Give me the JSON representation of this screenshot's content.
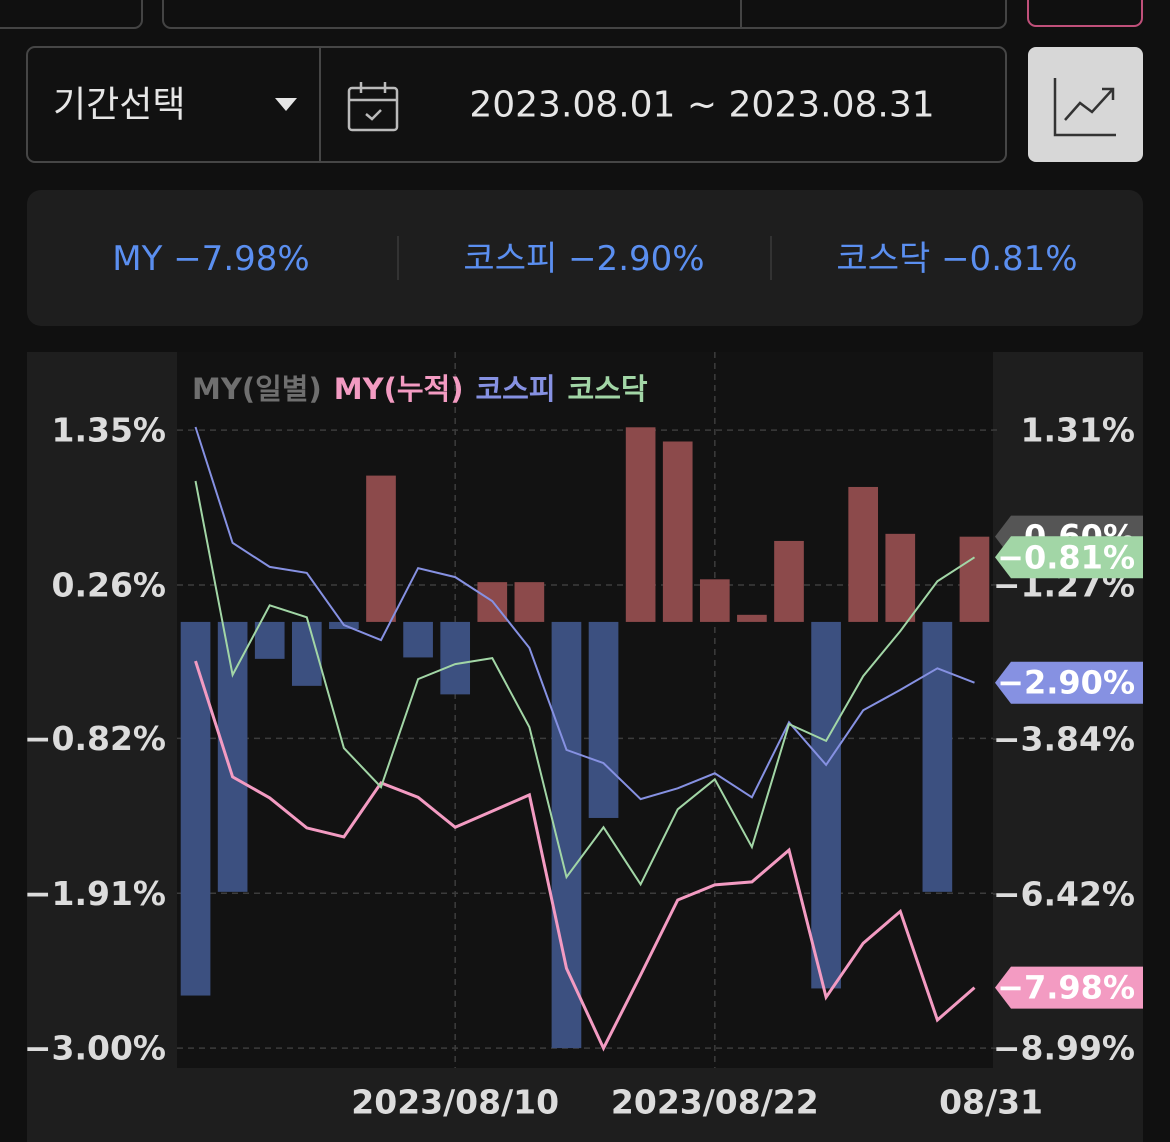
{
  "filter": {
    "period_select": "기간선택",
    "date_range": "2023.08.01 ~ 2023.08.31"
  },
  "summary": [
    "MY −7.98%",
    "코스피 −2.90%",
    "코스닥 −0.81%"
  ],
  "chart_data": {
    "type": "combo",
    "categories": [
      null,
      null,
      null,
      null,
      null,
      null,
      null,
      "2023/08/10",
      null,
      null,
      null,
      null,
      null,
      null,
      "2023/08/22",
      null,
      null,
      null,
      null,
      null,
      null,
      "08/31"
    ],
    "ylim": [
      -3.14,
      1.9
    ],
    "yticks": [
      {
        "value": 1.35,
        "label": "1.35%"
      },
      {
        "value": 0.26,
        "label": "0.26%"
      },
      {
        "value": -0.82,
        "label": "−0.82%"
      },
      {
        "value": -1.91,
        "label": "−1.91%"
      },
      {
        "value": -3.0,
        "label": "−3.00%"
      }
    ],
    "y2lim": [
      -9.32,
      2.61
    ],
    "y2ticks": [
      {
        "value": 1.31,
        "label": "1.31%"
      },
      {
        "value": -1.27,
        "label": "−1.27%"
      },
      {
        "value": -3.84,
        "label": "−3.84%"
      },
      {
        "value": -6.42,
        "label": "−6.42%"
      },
      {
        "value": -8.99,
        "label": "−8.99%"
      }
    ],
    "grid": true,
    "legend": "top-left",
    "series": [
      {
        "name": "MY(일별)",
        "type": "bar",
        "axis": "y",
        "color": "#6f6f6f",
        "positive_color": "#8c4a4b",
        "negative_color": "#3c5080",
        "values": [
          -2.63,
          -1.9,
          -0.26,
          -0.45,
          -0.05,
          1.03,
          -0.25,
          -0.51,
          0.28,
          0.28,
          -3.0,
          -1.38,
          1.37,
          1.27,
          0.3,
          0.05,
          0.57,
          -2.58,
          0.95,
          0.62,
          -1.9,
          0.6
        ],
        "value_labels": [
          null,
          null,
          null,
          null,
          null,
          null,
          null,
          null,
          null,
          null,
          null,
          null,
          null,
          null,
          null,
          null,
          null,
          null,
          null,
          null,
          null,
          "0.60%"
        ]
      },
      {
        "name": "MY(누적)",
        "type": "line",
        "axis": "y2",
        "color": "#f39bc2",
        "values": [
          -2.54,
          -4.47,
          -4.82,
          -5.32,
          -5.47,
          -4.57,
          -4.81,
          -5.31,
          -5.04,
          -4.77,
          -7.66,
          -8.99,
          -7.77,
          -6.52,
          -6.27,
          -6.22,
          -5.69,
          -8.14,
          -7.24,
          -6.71,
          -8.52,
          -7.98
        ],
        "value_labels": [
          null,
          null,
          null,
          null,
          null,
          null,
          null,
          null,
          null,
          null,
          null,
          null,
          null,
          null,
          null,
          null,
          null,
          null,
          null,
          null,
          null,
          "−7.98%"
        ]
      },
      {
        "name": "코스피",
        "type": "line",
        "axis": "y2",
        "color": "#8691e2",
        "values": [
          1.36,
          -0.57,
          -0.97,
          -1.07,
          -1.94,
          -2.19,
          -0.99,
          -1.14,
          -1.54,
          -2.32,
          -4.02,
          -4.24,
          -4.84,
          -4.66,
          -4.41,
          -4.81,
          -3.56,
          -4.27,
          -3.36,
          -3.02,
          -2.66,
          -2.9
        ],
        "value_labels": [
          null,
          null,
          null,
          null,
          null,
          null,
          null,
          null,
          null,
          null,
          null,
          null,
          null,
          null,
          null,
          null,
          null,
          null,
          null,
          null,
          null,
          "−2.90%"
        ]
      },
      {
        "name": "코스닥",
        "type": "line",
        "axis": "y2",
        "color": "#a2d6a6",
        "values": [
          0.46,
          -2.77,
          -1.61,
          -1.81,
          -3.99,
          -4.64,
          -2.84,
          -2.59,
          -2.49,
          -3.64,
          -6.14,
          -5.31,
          -6.26,
          -5.01,
          -4.51,
          -5.64,
          -3.59,
          -3.87,
          -2.79,
          -2.04,
          -1.21,
          -0.81
        ],
        "value_labels": [
          null,
          null,
          null,
          null,
          null,
          null,
          null,
          null,
          null,
          null,
          null,
          null,
          null,
          null,
          null,
          null,
          null,
          null,
          null,
          null,
          null,
          "−0.81%"
        ]
      }
    ]
  }
}
